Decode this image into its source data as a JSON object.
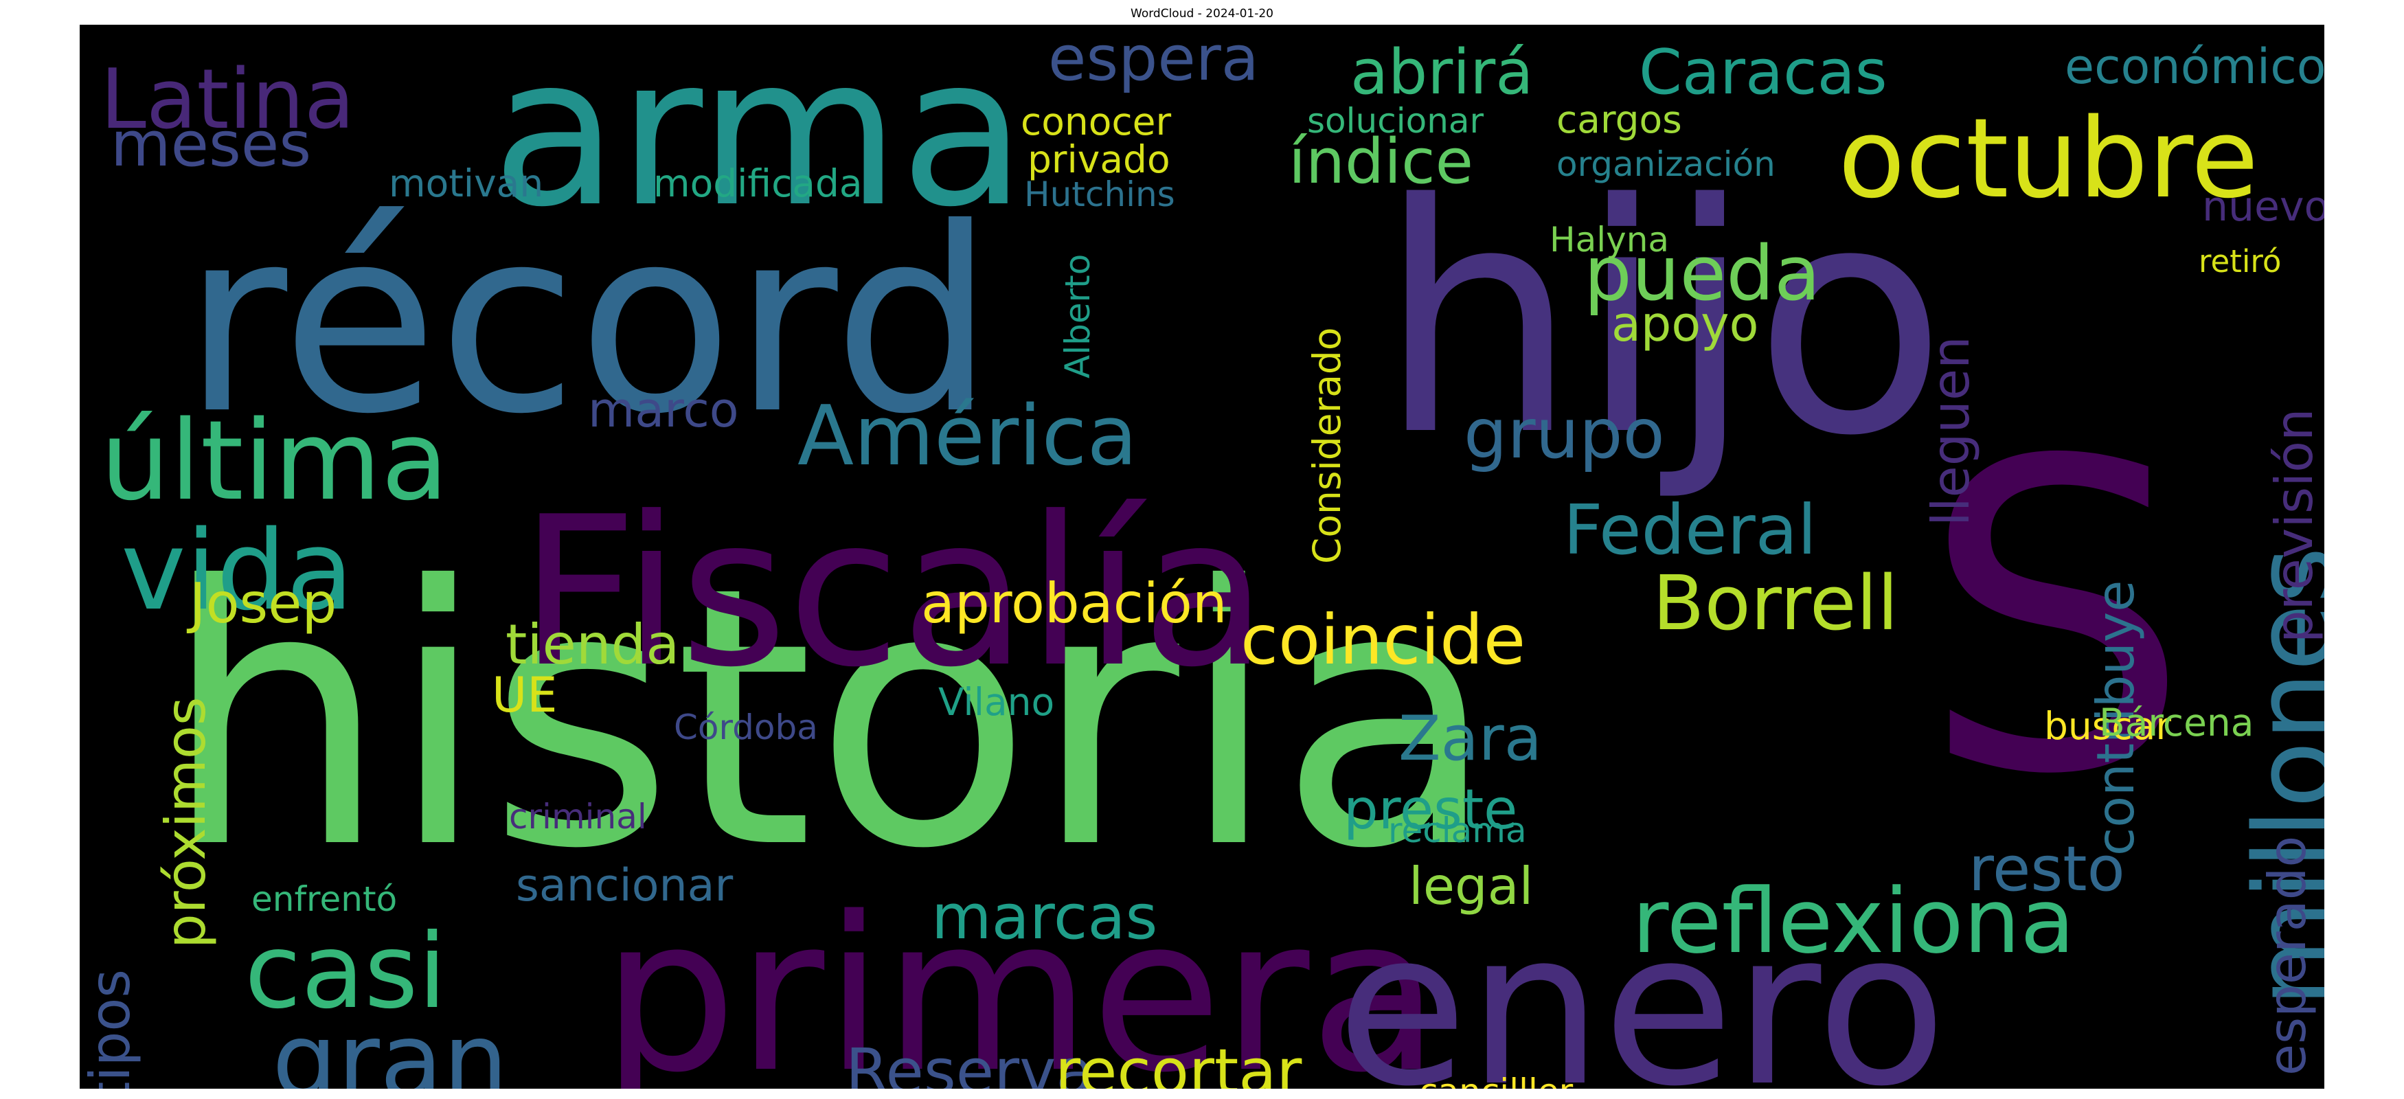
{
  "figure": {
    "title": "WordCloud - 2024-01-20"
  },
  "chart_data": {
    "type": "wordcloud",
    "background": "#000000",
    "colormap": "viridis",
    "words": [
      {
        "text": "historia",
        "color": "#5ec962"
      },
      {
        "text": "hijo",
        "color": "#46327e"
      },
      {
        "text": "récord",
        "color": "#31688e"
      },
      {
        "text": "S",
        "color": "#440154"
      },
      {
        "text": "Fiscalía",
        "color": "#440154"
      },
      {
        "text": "primera",
        "color": "#440154"
      },
      {
        "text": "enero",
        "color": "#472d7b"
      },
      {
        "text": "arma",
        "color": "#21918c"
      },
      {
        "text": "octubre",
        "color": "#d8e219"
      },
      {
        "text": "millones",
        "color": "#2c728e"
      },
      {
        "text": "Latina",
        "color": "#482878"
      },
      {
        "text": "última",
        "color": "#35b779"
      },
      {
        "text": "vida",
        "color": "#1f9e89"
      },
      {
        "text": "casi",
        "color": "#35b779"
      },
      {
        "text": "gran",
        "color": "#33638d"
      },
      {
        "text": "reflexiona",
        "color": "#35b779"
      },
      {
        "text": "América",
        "color": "#2a788e"
      },
      {
        "text": "Borrell",
        "color": "#b5de2b"
      },
      {
        "text": "coincide",
        "color": "#fde725"
      },
      {
        "text": "Reserva",
        "color": "#3b528b"
      },
      {
        "text": "recortar",
        "color": "#d8e219"
      },
      {
        "text": "índice",
        "color": "#5ec962"
      },
      {
        "text": "pueda",
        "color": "#6ece58"
      },
      {
        "text": "Caracas",
        "color": "#1f9e89"
      },
      {
        "text": "Federal",
        "color": "#26828e"
      },
      {
        "text": "grupo",
        "color": "#31688e"
      },
      {
        "text": "abrirá",
        "color": "#35b779"
      },
      {
        "text": "espera",
        "color": "#3b528b"
      },
      {
        "text": "meses",
        "color": "#3e4989"
      },
      {
        "text": "marcas",
        "color": "#1f9e89"
      },
      {
        "text": "aprobación",
        "color": "#fde725"
      },
      {
        "text": "tienda",
        "color": "#a0da39"
      },
      {
        "text": "Josep",
        "color": "#c2df23"
      },
      {
        "text": "Zara",
        "color": "#2a788e"
      },
      {
        "text": "próximos",
        "color": "#addc30"
      },
      {
        "text": "tipos",
        "color": "#3b528b"
      },
      {
        "text": "preste",
        "color": "#1f9e89"
      },
      {
        "text": "resto",
        "color": "#31688e"
      },
      {
        "text": "esperado",
        "color": "#3e4989"
      },
      {
        "text": "previsión",
        "color": "#472d7b"
      },
      {
        "text": "contribuye",
        "color": "#2c728e"
      },
      {
        "text": "lleguen",
        "color": "#472d7b"
      },
      {
        "text": "sancionar",
        "color": "#31688e"
      },
      {
        "text": "económico",
        "color": "#26828e"
      },
      {
        "text": "apoyo",
        "color": "#a0da39"
      },
      {
        "text": "legal",
        "color": "#90d743"
      },
      {
        "text": "marco",
        "color": "#3e4989"
      },
      {
        "text": "UE",
        "color": "#d8e219"
      },
      {
        "text": "Considerado",
        "color": "#d8e219"
      },
      {
        "text": "motivan",
        "color": "#2a788e"
      },
      {
        "text": "modificada",
        "color": "#22a884"
      },
      {
        "text": "conocer",
        "color": "#d8e219"
      },
      {
        "text": "privado",
        "color": "#d8e219"
      },
      {
        "text": "solucionar",
        "color": "#35b779"
      },
      {
        "text": "cargos",
        "color": "#a0da39"
      },
      {
        "text": "organización",
        "color": "#26828e"
      },
      {
        "text": "nuevo",
        "color": "#472d7b"
      },
      {
        "text": "Hutchins",
        "color": "#2c728e"
      },
      {
        "text": "Alberto",
        "color": "#1f9e89"
      },
      {
        "text": "Halyna",
        "color": "#7ad151"
      },
      {
        "text": "retiró",
        "color": "#d8e219"
      },
      {
        "text": "buscar",
        "color": "#fde725"
      },
      {
        "text": "Bárcena",
        "color": "#7ad151"
      },
      {
        "text": "Vilano",
        "color": "#1fa188"
      },
      {
        "text": "Córdoba",
        "color": "#3e4989"
      },
      {
        "text": "criminal",
        "color": "#472d7b"
      },
      {
        "text": "reclama",
        "color": "#1f9e89"
      },
      {
        "text": "enfrentó",
        "color": "#35b779"
      },
      {
        "text": "cancilller",
        "color": "#fde725"
      }
    ]
  }
}
